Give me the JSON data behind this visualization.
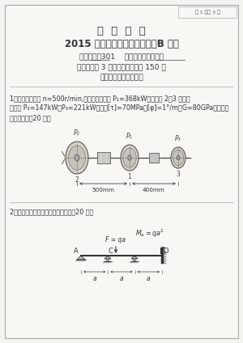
{
  "bg_color": "#f5f3ef",
  "paper_color": "#f8f7f4",
  "border_color": "#aaaaaa",
  "text_color": "#333333",
  "title1": "三  峡  大  学",
  "title2": "2015 年研究生入学考试试题（B 卷）",
  "line1a": "科目代码：",
  "line1b": "301",
  "line1c": "    科目名称：",
  "line1d": "材料力学",
  "line2": "考试时间为 3 小时、卷面总分为 150 分",
  "line3": "答案必须写在答题纸上",
  "q1_line1": "1、传动轴的转速 n=500r/min,主动轮输入功率 P₁=368kW，从动轮 2、3 分别输",
  "q1_line2": "出功率 P₂=147kW、P₃=221kW。已知[τ]=70MPa，[φ]=1°/m，G=80GPa。试设计",
  "q1_line3": "轴的直径。（20 分）",
  "q2_text": "2、画出图示梁的剪力图和弯矩图。（20 分）",
  "page_label": "第 1 页共 3 页",
  "shaft_dims": [
    "500mm",
    "400mm"
  ]
}
